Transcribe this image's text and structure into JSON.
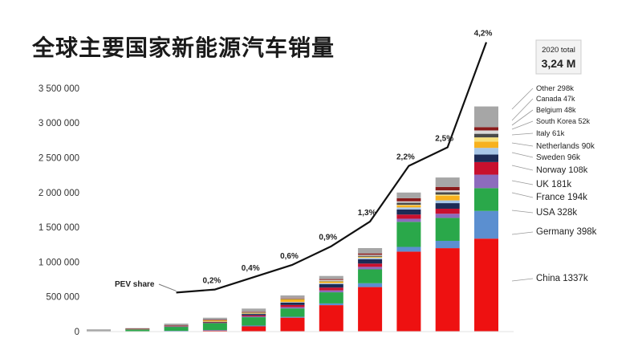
{
  "title": "全球主要国家新能源汽车销量",
  "chart_data": {
    "type": "bar",
    "stacked": true,
    "categories": [
      "",
      "",
      "",
      "",
      "",
      "",
      "",
      "",
      "",
      "",
      ""
    ],
    "ylim": [
      0,
      3500000
    ],
    "yticks": [
      {
        "value": 0,
        "label": "0"
      },
      {
        "value": 500000,
        "label": "500 000"
      },
      {
        "value": 1000000,
        "label": "1 000 000"
      },
      {
        "value": 1500000,
        "label": "1 500 000"
      },
      {
        "value": 2000000,
        "label": "2 000 000"
      },
      {
        "value": 2500000,
        "label": "2 500 000"
      },
      {
        "value": 3000000,
        "label": "3 000 000"
      },
      {
        "value": 3500000,
        "label": "3 500 000"
      }
    ],
    "grid": false,
    "series": [
      {
        "name": "China",
        "color": "#ee1111",
        "values": [
          0,
          1000,
          8000,
          15000,
          75000,
          200000,
          380000,
          640000,
          1150000,
          1200000,
          1337000
        ]
      },
      {
        "name": "Germany",
        "color": "#5b8fd0",
        "values": [
          0,
          2000,
          3000,
          8000,
          12000,
          13000,
          25000,
          55000,
          68000,
          105000,
          398000
        ]
      },
      {
        "name": "USA",
        "color": "#2aa84a",
        "values": [
          2000,
          30000,
          60000,
          100000,
          120000,
          120000,
          160000,
          200000,
          360000,
          330000,
          328000
        ]
      },
      {
        "name": "France",
        "color": "#8d6bbd",
        "values": [
          0,
          1500,
          3000,
          6000,
          12000,
          20000,
          28000,
          36000,
          45000,
          60000,
          194000
        ]
      },
      {
        "name": "UK",
        "color": "#c8102e",
        "values": [
          0,
          1200,
          2500,
          3500,
          15000,
          30000,
          40000,
          47000,
          60000,
          72000,
          181000
        ]
      },
      {
        "name": "Norway",
        "color": "#1c2b56",
        "values": [
          0,
          2000,
          5000,
          10000,
          20000,
          34000,
          50000,
          62000,
          73000,
          80000,
          108000
        ]
      },
      {
        "name": "Sweden",
        "color": "#a8c7e8",
        "values": [
          0,
          500,
          1000,
          1500,
          5000,
          8000,
          14000,
          20000,
          30000,
          40000,
          96000
        ]
      },
      {
        "name": "Netherlands",
        "color": "#f7b11e",
        "values": [
          0,
          1000,
          5000,
          22000,
          15000,
          43000,
          24000,
          11000,
          28000,
          66000,
          90000
        ]
      },
      {
        "name": "Italy",
        "color": "#f7e07a",
        "values": [
          0,
          300,
          500,
          800,
          1500,
          2000,
          3000,
          5000,
          9000,
          17000,
          61000
        ]
      },
      {
        "name": "South Korea",
        "color": "#4a4a4a",
        "values": [
          0,
          300,
          500,
          1000,
          1500,
          3000,
          6000,
          14000,
          30000,
          35000,
          52000
        ]
      },
      {
        "name": "Belgium",
        "color": "#d9d9d9",
        "values": [
          0,
          500,
          1500,
          2500,
          5000,
          8000,
          13000,
          14000,
          20000,
          26000,
          48000
        ]
      },
      {
        "name": "Canada",
        "color": "#8a1a1a",
        "values": [
          0,
          500,
          1500,
          3000,
          5000,
          7000,
          12000,
          20000,
          45000,
          50000,
          47000
        ]
      },
      {
        "name": "Other",
        "color": "#a6a6a6",
        "values": [
          30000,
          9200,
          23000,
          26000,
          44000,
          32000,
          45000,
          77000,
          82000,
          135000,
          298000
        ]
      }
    ],
    "share_line": {
      "label": "PEV share",
      "points": [
        {
          "value": 0.0015,
          "label": ""
        },
        {
          "value": 0.002,
          "label": "0,2%"
        },
        {
          "value": 0.004,
          "label": "0,4%"
        },
        {
          "value": 0.006,
          "label": "0,6%"
        },
        {
          "value": 0.009,
          "label": "0,9%"
        },
        {
          "value": 0.013,
          "label": "1,3%"
        },
        {
          "value": 0.022,
          "label": "2,2%"
        },
        {
          "value": 0.025,
          "label": "2,5%"
        },
        {
          "value": 0.042,
          "label": "4,2%"
        }
      ]
    },
    "total_box": {
      "caption": "2020 total",
      "value": "3,24 M"
    },
    "legend": [
      {
        "name": "Other",
        "text": "Other 298k"
      },
      {
        "name": "Canada",
        "text": "Canada 47k"
      },
      {
        "name": "Belgium",
        "text": "Belgium 48k"
      },
      {
        "name": "South Korea",
        "text": "South Korea 52k"
      },
      {
        "name": "Italy",
        "text": "Italy 61k"
      },
      {
        "name": "Netherlands",
        "text": "Netherlands 90k"
      },
      {
        "name": "Sweden",
        "text": "Sweden 96k"
      },
      {
        "name": "Norway",
        "text": "Norway 108k"
      },
      {
        "name": "UK",
        "text": "UK 181k"
      },
      {
        "name": "France",
        "text": "France 194k"
      },
      {
        "name": "USA",
        "text": "USA 328k"
      },
      {
        "name": "Germany",
        "text": "Germany 398k"
      },
      {
        "name": "China",
        "text": "China 1337k"
      }
    ]
  }
}
